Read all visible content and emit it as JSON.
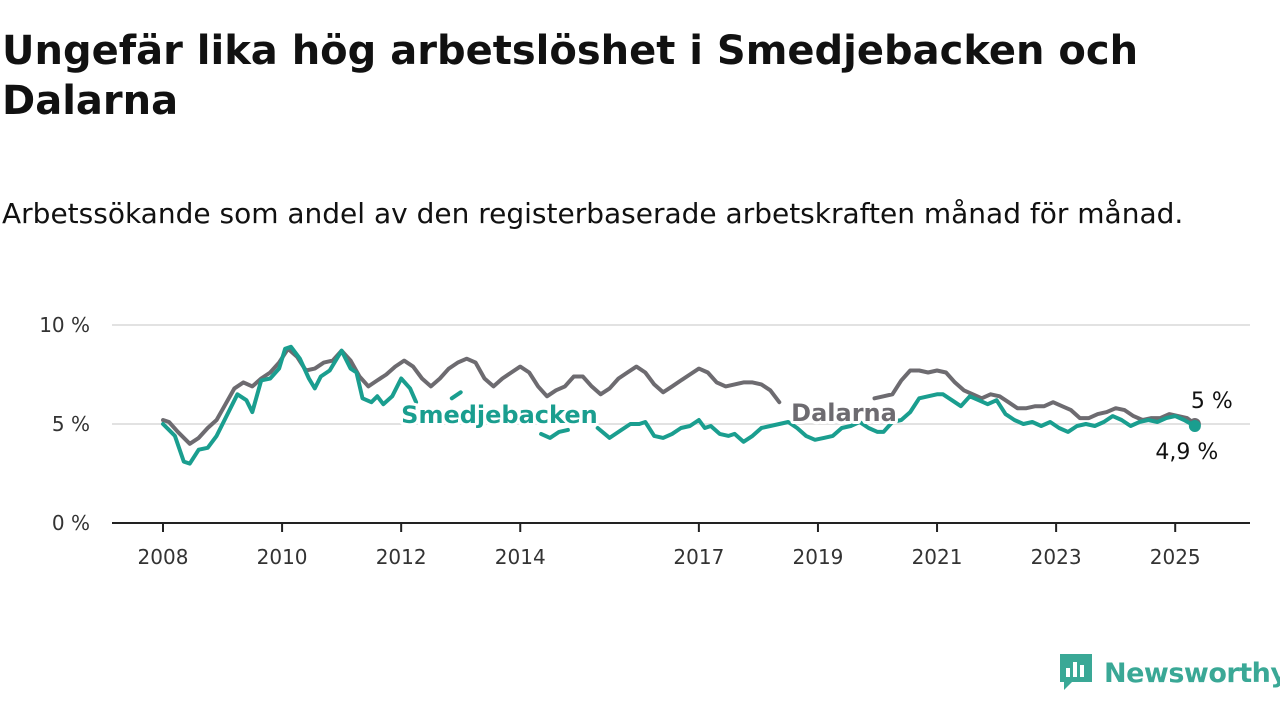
{
  "header": {
    "title": "Ungefär lika hög arbetslöshet i Smedjebacken och Dalarna",
    "subtitle": "Arbetssökande som andel av den registerbaserade arbetskraften månad för månad."
  },
  "brand": {
    "name": "Newsworthy",
    "color": "#3aa896",
    "icon": "newsworthy-logo-icon"
  },
  "chart_data": {
    "type": "line",
    "title": "Ungefär lika hög arbetslöshet i Smedjebacken och Dalarna",
    "subtitle": "Arbetssökande som andel av den registerbaserade arbetskraften månad för månad.",
    "xlabel": "",
    "ylabel": "",
    "x_range": [
      2008.0,
      2025.45
    ],
    "ylim": [
      0,
      10
    ],
    "y_ticks": [
      {
        "value": 0,
        "label": "0 %"
      },
      {
        "value": 5,
        "label": "5 %"
      },
      {
        "value": 10,
        "label": "10 %"
      }
    ],
    "x_ticks": [
      {
        "value": 2008,
        "label": "2008"
      },
      {
        "value": 2010,
        "label": "2010"
      },
      {
        "value": 2012,
        "label": "2012"
      },
      {
        "value": 2014,
        "label": "2014"
      },
      {
        "value": 2017,
        "label": "2017"
      },
      {
        "value": 2019,
        "label": "2019"
      },
      {
        "value": 2021,
        "label": "2021"
      },
      {
        "value": 2023,
        "label": "2023"
      },
      {
        "value": 2025,
        "label": "2025"
      }
    ],
    "grid": true,
    "legend": "direct labels on lines",
    "series": [
      {
        "name": "Dalarna",
        "color": "#6d6b70",
        "end_label": "5 %",
        "points": [
          [
            2008.0,
            5.2
          ],
          [
            2008.1,
            5.1
          ],
          [
            2008.25,
            4.6
          ],
          [
            2008.45,
            4.0
          ],
          [
            2008.6,
            4.3
          ],
          [
            2008.75,
            4.8
          ],
          [
            2008.9,
            5.2
          ],
          [
            2009.05,
            6.0
          ],
          [
            2009.2,
            6.8
          ],
          [
            2009.35,
            7.1
          ],
          [
            2009.5,
            6.9
          ],
          [
            2009.65,
            7.3
          ],
          [
            2009.8,
            7.6
          ],
          [
            2009.95,
            8.1
          ],
          [
            2010.1,
            8.8
          ],
          [
            2010.25,
            8.4
          ],
          [
            2010.4,
            7.7
          ],
          [
            2010.55,
            7.8
          ],
          [
            2010.7,
            8.1
          ],
          [
            2010.85,
            8.2
          ],
          [
            2011.0,
            8.7
          ],
          [
            2011.15,
            8.2
          ],
          [
            2011.3,
            7.4
          ],
          [
            2011.45,
            6.9
          ],
          [
            2011.6,
            7.2
          ],
          [
            2011.75,
            7.5
          ],
          [
            2011.9,
            7.9
          ],
          [
            2012.05,
            8.2
          ],
          [
            2012.2,
            7.9
          ],
          [
            2012.35,
            7.3
          ],
          [
            2012.5,
            6.9
          ],
          [
            2012.65,
            7.3
          ],
          [
            2012.8,
            7.8
          ],
          [
            2012.95,
            8.1
          ],
          [
            2013.1,
            8.3
          ],
          [
            2013.25,
            8.1
          ],
          [
            2013.4,
            7.3
          ],
          [
            2013.55,
            6.9
          ],
          [
            2013.7,
            7.3
          ],
          [
            2013.85,
            7.6
          ],
          [
            2014.0,
            7.9
          ],
          [
            2014.15,
            7.6
          ],
          [
            2014.3,
            6.9
          ],
          [
            2014.45,
            6.4
          ],
          [
            2014.6,
            6.7
          ],
          [
            2014.75,
            6.9
          ],
          [
            2014.9,
            7.4
          ],
          [
            2015.05,
            7.4
          ],
          [
            2015.2,
            6.9
          ],
          [
            2015.35,
            6.5
          ],
          [
            2015.5,
            6.8
          ],
          [
            2015.65,
            7.3
          ],
          [
            2015.8,
            7.6
          ],
          [
            2015.95,
            7.9
          ],
          [
            2016.1,
            7.6
          ],
          [
            2016.25,
            7.0
          ],
          [
            2016.4,
            6.6
          ],
          [
            2016.55,
            6.9
          ],
          [
            2016.7,
            7.2
          ],
          [
            2016.85,
            7.5
          ],
          [
            2017.0,
            7.8
          ],
          [
            2017.15,
            7.6
          ],
          [
            2017.3,
            7.1
          ],
          [
            2017.45,
            6.9
          ],
          [
            2017.6,
            7.0
          ],
          [
            2017.75,
            7.1
          ],
          [
            2017.9,
            7.1
          ],
          [
            2018.05,
            7.0
          ],
          [
            2018.2,
            6.7
          ],
          [
            2018.35,
            6.1
          ],
          [
            2019.95,
            6.3
          ],
          [
            2020.1,
            6.4
          ],
          [
            2020.25,
            6.5
          ],
          [
            2020.4,
            7.2
          ],
          [
            2020.55,
            7.7
          ],
          [
            2020.7,
            7.7
          ],
          [
            2020.85,
            7.6
          ],
          [
            2021.0,
            7.7
          ],
          [
            2021.15,
            7.6
          ],
          [
            2021.3,
            7.1
          ],
          [
            2021.45,
            6.7
          ],
          [
            2021.6,
            6.5
          ],
          [
            2021.75,
            6.3
          ],
          [
            2021.9,
            6.5
          ],
          [
            2022.05,
            6.4
          ],
          [
            2022.2,
            6.1
          ],
          [
            2022.35,
            5.8
          ],
          [
            2022.5,
            5.8
          ],
          [
            2022.65,
            5.9
          ],
          [
            2022.8,
            5.9
          ],
          [
            2022.95,
            6.1
          ],
          [
            2023.1,
            5.9
          ],
          [
            2023.25,
            5.7
          ],
          [
            2023.4,
            5.3
          ],
          [
            2023.55,
            5.3
          ],
          [
            2023.7,
            5.5
          ],
          [
            2023.85,
            5.6
          ],
          [
            2024.0,
            5.8
          ],
          [
            2024.15,
            5.7
          ],
          [
            2024.3,
            5.4
          ],
          [
            2024.45,
            5.2
          ],
          [
            2024.6,
            5.3
          ],
          [
            2024.75,
            5.3
          ],
          [
            2024.9,
            5.5
          ],
          [
            2025.05,
            5.4
          ],
          [
            2025.2,
            5.3
          ],
          [
            2025.33,
            5.0
          ]
        ]
      },
      {
        "name": "Smedjebacken",
        "color": "#1a9e8f",
        "end_label": "4,9 %",
        "points": [
          [
            2008.0,
            5.0
          ],
          [
            2008.1,
            4.7
          ],
          [
            2008.2,
            4.4
          ],
          [
            2008.35,
            3.1
          ],
          [
            2008.45,
            3.0
          ],
          [
            2008.6,
            3.7
          ],
          [
            2008.75,
            3.8
          ],
          [
            2008.9,
            4.4
          ],
          [
            2009.05,
            5.3
          ],
          [
            2009.25,
            6.5
          ],
          [
            2009.4,
            6.2
          ],
          [
            2009.5,
            5.6
          ],
          [
            2009.65,
            7.2
          ],
          [
            2009.8,
            7.3
          ],
          [
            2009.95,
            7.8
          ],
          [
            2010.05,
            8.8
          ],
          [
            2010.15,
            8.9
          ],
          [
            2010.3,
            8.3
          ],
          [
            2010.45,
            7.3
          ],
          [
            2010.55,
            6.8
          ],
          [
            2010.65,
            7.4
          ],
          [
            2010.8,
            7.7
          ],
          [
            2011.0,
            8.7
          ],
          [
            2011.15,
            7.8
          ],
          [
            2011.25,
            7.6
          ],
          [
            2011.35,
            6.3
          ],
          [
            2011.5,
            6.1
          ],
          [
            2011.6,
            6.4
          ],
          [
            2011.7,
            6.0
          ],
          [
            2011.85,
            6.4
          ],
          [
            2012.0,
            7.3
          ],
          [
            2012.15,
            6.8
          ],
          [
            2012.25,
            6.1
          ],
          [
            2012.85,
            6.3
          ],
          [
            2013.0,
            6.6
          ],
          [
            2014.35,
            4.5
          ],
          [
            2014.5,
            4.3
          ],
          [
            2014.65,
            4.6
          ],
          [
            2014.8,
            4.7
          ],
          [
            2015.3,
            4.8
          ],
          [
            2015.5,
            4.3
          ],
          [
            2015.7,
            4.7
          ],
          [
            2015.85,
            5.0
          ],
          [
            2016.0,
            5.0
          ],
          [
            2016.1,
            5.1
          ],
          [
            2016.25,
            4.4
          ],
          [
            2016.4,
            4.3
          ],
          [
            2016.55,
            4.5
          ],
          [
            2016.7,
            4.8
          ],
          [
            2016.85,
            4.9
          ],
          [
            2017.0,
            5.2
          ],
          [
            2017.1,
            4.8
          ],
          [
            2017.2,
            4.9
          ],
          [
            2017.35,
            4.5
          ],
          [
            2017.5,
            4.4
          ],
          [
            2017.6,
            4.5
          ],
          [
            2017.75,
            4.1
          ],
          [
            2017.9,
            4.4
          ],
          [
            2018.05,
            4.8
          ],
          [
            2018.2,
            4.9
          ],
          [
            2018.35,
            5.0
          ],
          [
            2018.5,
            5.1
          ],
          [
            2018.65,
            4.8
          ],
          [
            2018.8,
            4.4
          ],
          [
            2018.95,
            4.2
          ],
          [
            2019.1,
            4.3
          ],
          [
            2019.25,
            4.4
          ],
          [
            2019.4,
            4.8
          ],
          [
            2019.55,
            4.9
          ],
          [
            2019.7,
            5.1
          ],
          [
            2019.85,
            4.8
          ],
          [
            2020.0,
            4.6
          ],
          [
            2020.1,
            4.6
          ],
          [
            2020.25,
            5.1
          ],
          [
            2020.4,
            5.2
          ],
          [
            2020.55,
            5.6
          ],
          [
            2020.7,
            6.3
          ],
          [
            2020.85,
            6.4
          ],
          [
            2021.0,
            6.5
          ],
          [
            2021.1,
            6.5
          ],
          [
            2021.25,
            6.2
          ],
          [
            2021.4,
            5.9
          ],
          [
            2021.55,
            6.4
          ],
          [
            2021.7,
            6.2
          ],
          [
            2021.85,
            6.0
          ],
          [
            2022.0,
            6.2
          ],
          [
            2022.15,
            5.5
          ],
          [
            2022.3,
            5.2
          ],
          [
            2022.45,
            5.0
          ],
          [
            2022.6,
            5.1
          ],
          [
            2022.75,
            4.9
          ],
          [
            2022.9,
            5.1
          ],
          [
            2023.05,
            4.8
          ],
          [
            2023.2,
            4.6
          ],
          [
            2023.35,
            4.9
          ],
          [
            2023.5,
            5.0
          ],
          [
            2023.65,
            4.9
          ],
          [
            2023.8,
            5.1
          ],
          [
            2023.95,
            5.4
          ],
          [
            2024.1,
            5.2
          ],
          [
            2024.25,
            4.9
          ],
          [
            2024.4,
            5.1
          ],
          [
            2024.55,
            5.2
          ],
          [
            2024.7,
            5.1
          ],
          [
            2024.85,
            5.3
          ],
          [
            2025.0,
            5.4
          ],
          [
            2025.15,
            5.2
          ],
          [
            2025.33,
            4.9
          ]
        ]
      }
    ],
    "labels": [
      {
        "series": "Dalarna",
        "text": "Dalarna",
        "x": 2018.55,
        "y": 6.0
      },
      {
        "series": "Smedjebacken",
        "text": "Smedjebacken",
        "x": 2012.0,
        "y": 5.9
      }
    ]
  }
}
